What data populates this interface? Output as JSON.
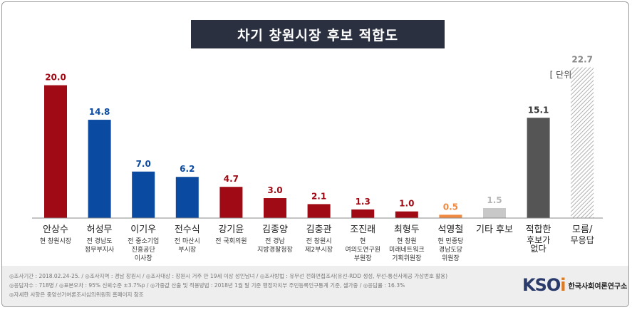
{
  "title": "차기 창원시장 후보 적합도",
  "unit_label": "[ 단위: % ]",
  "chart_data": {
    "type": "bar",
    "categories": [
      {
        "name": "안상수",
        "desc": [
          "현 창원시장"
        ]
      },
      {
        "name": "허성무",
        "desc": [
          "전 경남도",
          "정무부지사"
        ]
      },
      {
        "name": "이기우",
        "desc": [
          "전 중소기업",
          "진흥공단",
          "이사장"
        ]
      },
      {
        "name": "전수식",
        "desc": [
          "전 마산시",
          "부시장"
        ]
      },
      {
        "name": "강기윤",
        "desc": [
          "전 국회의원"
        ]
      },
      {
        "name": "김종양",
        "desc": [
          "전 경남",
          "지방경찰청장"
        ]
      },
      {
        "name": "김충관",
        "desc": [
          "전 창원시",
          "제2부시장"
        ]
      },
      {
        "name": "조진래",
        "desc": [
          "현",
          "여의도연구원",
          "부원장"
        ]
      },
      {
        "name": "최형두",
        "desc": [
          "현 창원",
          "미래네트워크",
          "기획위원장"
        ]
      },
      {
        "name": "석영철",
        "desc": [
          "현 민중당",
          "경남도당",
          "위원장"
        ]
      },
      {
        "name": "기타 후보",
        "desc": []
      },
      {
        "name": "적합한",
        "desc": [
          "후보가",
          "없다"
        ]
      },
      {
        "name": "모름/",
        "desc": [
          "무응답"
        ]
      }
    ],
    "values": [
      20.0,
      14.8,
      7.0,
      6.2,
      4.7,
      3.0,
      2.1,
      1.3,
      1.0,
      0.5,
      1.5,
      15.1,
      22.7
    ],
    "value_labels": [
      "20.0",
      "14.8",
      "7.0",
      "6.2",
      "4.7",
      "3.0",
      "2.1",
      "1.3",
      "1.0",
      "0.5",
      "1.5",
      "15.1",
      "22.7"
    ],
    "colors": [
      "#a00a14",
      "#0a4aa0",
      "#0a4aa0",
      "#0a4aa0",
      "#a00a14",
      "#a00a14",
      "#a00a14",
      "#a00a14",
      "#a00a14",
      "#f08a40",
      "#c8c8c8",
      "#555555",
      "#hatch"
    ],
    "label_colors": [
      "#a00a14",
      "#0a4aa0",
      "#0a4aa0",
      "#0a4aa0",
      "#a00a14",
      "#a00a14",
      "#a00a14",
      "#a00a14",
      "#a00a14",
      "#f08a40",
      "#b4b4b4",
      "#333333",
      "#888888"
    ],
    "ylim": [
      0,
      25
    ]
  },
  "footer": {
    "line1": "◎조사기간 : 2018.02.24-25.  / ◎조사지역 : 경남 창원시  / ◎조사대상 : 창원시 거주 만 19세 이상 성인남녀  / ◎조사방법 : 유무선 전화면접조사(유선-RDD 생성, 무선-통신사제공 가상번호 활용)",
    "line2": "◎응답자수 : 718명  / ◎표본오차 : 95%  신뢰수준 ±3.7%p  / ◎가중값 산출 및 적용방법 : 2018년 1월 말 기준 행정자치부 주민등록인구통계 기준, 셀가중  / ◎응답률 : 16.3%",
    "line3": "◎자세한 사항은 중앙선거여론조사심의위원회 홈페이지 참조"
  },
  "logo": {
    "mark_main": "KSO",
    "mark_accent": "i",
    "text": "한국사회여론연구소"
  }
}
